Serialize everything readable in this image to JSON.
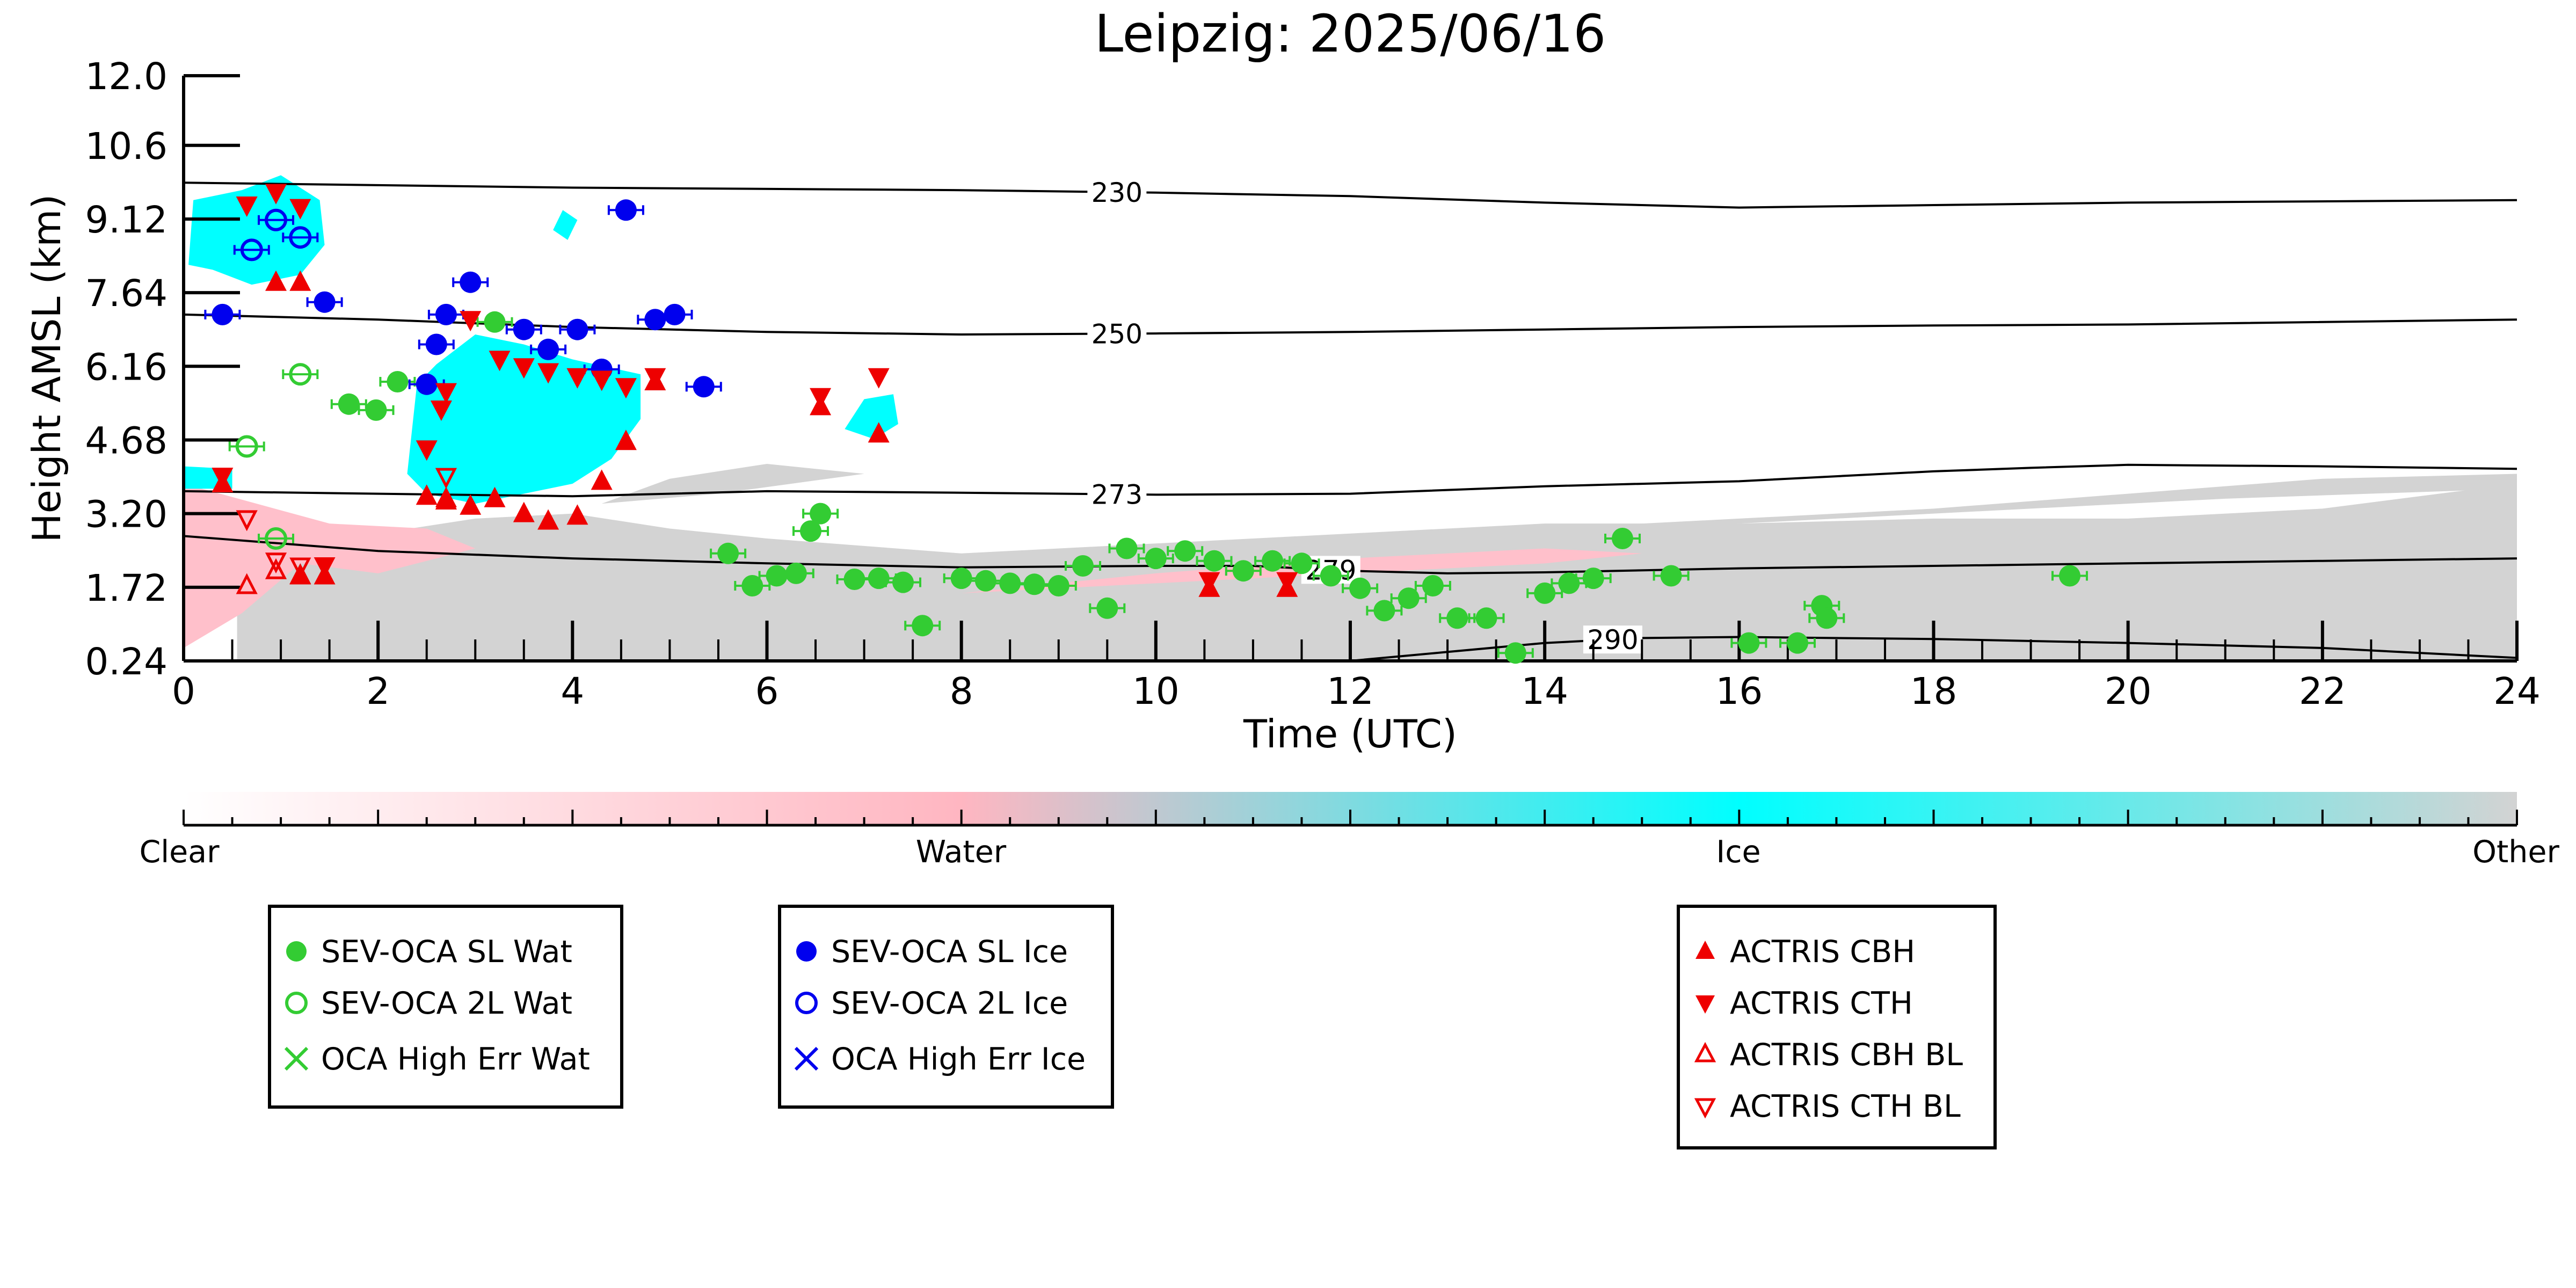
{
  "chart_data": {
    "type": "scatter",
    "title": "Leipzig: 2025/06/16",
    "xlabel": "Time (UTC)",
    "ylabel": "Height AMSL (km)",
    "xlim": [
      0,
      24
    ],
    "ylim": [
      0.24,
      12.0
    ],
    "x_ticks": [
      "0",
      "2",
      "4",
      "6",
      "8",
      "10",
      "12",
      "14",
      "16",
      "18",
      "20",
      "22",
      "24"
    ],
    "y_ticks": [
      "0.24",
      "1.72",
      "3.20",
      "4.68",
      "6.16",
      "7.64",
      "9.12",
      "10.6",
      "12.0"
    ],
    "background": "Cloudnet target classification (pink = water, cyan = ice, grey = other)",
    "colorbar": {
      "labels": [
        "Clear",
        "Water",
        "Ice",
        "Other"
      ],
      "colors": [
        "#ffffff",
        "#ffb6c1",
        "#00ffff",
        "#d3d3d3"
      ]
    },
    "contours": [
      {
        "label": "230",
        "label_x": 9.6,
        "points": [
          [
            0,
            9.85
          ],
          [
            4,
            9.75
          ],
          [
            8,
            9.7
          ],
          [
            10,
            9.65
          ],
          [
            12,
            9.58
          ],
          [
            14,
            9.45
          ],
          [
            16,
            9.35
          ],
          [
            18,
            9.4
          ],
          [
            20,
            9.45
          ],
          [
            24,
            9.5
          ]
        ]
      },
      {
        "label": "250",
        "label_x": 9.6,
        "points": [
          [
            0,
            7.2
          ],
          [
            2,
            7.1
          ],
          [
            4,
            6.95
          ],
          [
            6,
            6.85
          ],
          [
            8,
            6.8
          ],
          [
            10,
            6.82
          ],
          [
            12,
            6.85
          ],
          [
            14,
            6.9
          ],
          [
            16,
            6.95
          ],
          [
            18,
            6.98
          ],
          [
            20,
            7.0
          ],
          [
            24,
            7.1
          ]
        ]
      },
      {
        "label": "273",
        "label_x": 9.6,
        "points": [
          [
            0,
            3.65
          ],
          [
            2,
            3.6
          ],
          [
            4,
            3.55
          ],
          [
            6,
            3.65
          ],
          [
            8,
            3.62
          ],
          [
            10,
            3.58
          ],
          [
            12,
            3.6
          ],
          [
            14,
            3.75
          ],
          [
            16,
            3.85
          ],
          [
            17,
            3.95
          ],
          [
            18,
            4.05
          ],
          [
            19,
            4.12
          ],
          [
            20,
            4.18
          ],
          [
            22,
            4.15
          ],
          [
            24,
            4.1
          ]
        ]
      },
      {
        "label": "279",
        "label_x": 11.8,
        "points": [
          [
            0,
            2.75
          ],
          [
            1,
            2.6
          ],
          [
            2,
            2.45
          ],
          [
            4,
            2.3
          ],
          [
            6,
            2.2
          ],
          [
            8,
            2.12
          ],
          [
            10,
            2.15
          ],
          [
            11,
            2.15
          ],
          [
            12,
            2.05
          ],
          [
            13,
            2.0
          ],
          [
            14,
            2.02
          ],
          [
            16,
            2.1
          ],
          [
            18,
            2.15
          ],
          [
            20,
            2.2
          ],
          [
            22,
            2.25
          ],
          [
            24,
            2.3
          ]
        ]
      },
      {
        "label": "290",
        "label_x": 14.7,
        "points": [
          [
            12,
            0.24
          ],
          [
            13,
            0.42
          ],
          [
            14,
            0.6
          ],
          [
            15,
            0.7
          ],
          [
            16,
            0.72
          ],
          [
            18,
            0.68
          ],
          [
            20,
            0.6
          ],
          [
            22,
            0.5
          ],
          [
            24,
            0.3
          ]
        ]
      }
    ],
    "series": [
      {
        "name": "SEV-OCA SL Wat",
        "color": "#33cc33",
        "marker": "filled-circle",
        "points": [
          [
            1.7,
            5.4
          ],
          [
            1.98,
            5.28
          ],
          [
            2.2,
            5.85
          ],
          [
            3.2,
            7.05
          ],
          [
            5.6,
            2.4
          ],
          [
            5.85,
            1.75
          ],
          [
            6.1,
            1.95
          ],
          [
            6.3,
            2.0
          ],
          [
            6.45,
            2.85
          ],
          [
            6.55,
            3.2
          ],
          [
            6.9,
            1.88
          ],
          [
            7.15,
            1.9
          ],
          [
            7.4,
            1.82
          ],
          [
            7.6,
            0.95
          ],
          [
            8.0,
            1.9
          ],
          [
            8.25,
            1.85
          ],
          [
            8.5,
            1.8
          ],
          [
            8.75,
            1.78
          ],
          [
            9.0,
            1.75
          ],
          [
            9.25,
            2.15
          ],
          [
            9.5,
            1.3
          ],
          [
            9.7,
            2.5
          ],
          [
            10.0,
            2.3
          ],
          [
            10.3,
            2.45
          ],
          [
            10.6,
            2.25
          ],
          [
            10.9,
            2.05
          ],
          [
            11.2,
            2.25
          ],
          [
            11.5,
            2.2
          ],
          [
            11.8,
            1.95
          ],
          [
            12.1,
            1.7
          ],
          [
            12.35,
            1.25
          ],
          [
            12.6,
            1.5
          ],
          [
            12.85,
            1.75
          ],
          [
            13.1,
            1.1
          ],
          [
            13.4,
            1.1
          ],
          [
            13.7,
            0.4
          ],
          [
            14.0,
            1.6
          ],
          [
            14.25,
            1.8
          ],
          [
            14.5,
            1.9
          ],
          [
            14.8,
            2.7
          ],
          [
            15.3,
            1.95
          ],
          [
            16.1,
            0.6
          ],
          [
            16.6,
            0.6
          ],
          [
            16.85,
            1.35
          ],
          [
            16.9,
            1.1
          ],
          [
            19.4,
            1.95
          ]
        ]
      },
      {
        "name": "SEV-OCA 2L Wat",
        "color": "#33cc33",
        "marker": "open-circle",
        "points": [
          [
            0.65,
            4.55
          ],
          [
            0.95,
            2.7
          ],
          [
            1.2,
            6.0
          ]
        ]
      },
      {
        "name": "OCA High Err Wat",
        "color": "#33cc33",
        "marker": "x",
        "points": []
      },
      {
        "name": "SEV-OCA SL Ice",
        "color": "#0000ee",
        "marker": "filled-circle",
        "points": [
          [
            0.4,
            7.2
          ],
          [
            1.45,
            7.45
          ],
          [
            2.5,
            5.8
          ],
          [
            2.6,
            6.6
          ],
          [
            2.7,
            7.2
          ],
          [
            2.95,
            7.85
          ],
          [
            3.5,
            6.9
          ],
          [
            3.75,
            6.5
          ],
          [
            4.05,
            6.9
          ],
          [
            4.3,
            6.1
          ],
          [
            4.55,
            9.3
          ],
          [
            4.85,
            7.1
          ],
          [
            5.05,
            7.2
          ],
          [
            5.35,
            5.75
          ]
        ]
      },
      {
        "name": "SEV-OCA 2L Ice",
        "color": "#0000ee",
        "marker": "open-circle",
        "points": [
          [
            0.7,
            8.5
          ],
          [
            0.95,
            9.1
          ],
          [
            1.2,
            8.75
          ]
        ]
      },
      {
        "name": "OCA High Err Ice",
        "color": "#0000ee",
        "marker": "x",
        "points": []
      },
      {
        "name": "ACTRIS CBH",
        "color": "#ee0000",
        "marker": "filled-triangle-up",
        "points": [
          [
            0.4,
            3.8
          ],
          [
            0.95,
            7.85
          ],
          [
            1.2,
            7.85
          ],
          [
            1.2,
            1.95
          ],
          [
            1.45,
            1.95
          ],
          [
            2.5,
            3.55
          ],
          [
            2.7,
            3.5
          ],
          [
            2.95,
            3.35
          ],
          [
            3.2,
            3.5
          ],
          [
            3.5,
            3.2
          ],
          [
            3.75,
            3.05
          ],
          [
            4.05,
            3.15
          ],
          [
            4.3,
            3.85
          ],
          [
            4.55,
            4.65
          ],
          [
            4.85,
            5.85
          ],
          [
            6.55,
            5.35
          ],
          [
            7.15,
            4.8
          ],
          [
            10.55,
            1.7
          ],
          [
            11.35,
            1.7
          ]
        ]
      },
      {
        "name": "ACTRIS CTH",
        "color": "#ee0000",
        "marker": "filled-triangle-down",
        "points": [
          [
            0.4,
            3.95
          ],
          [
            0.65,
            9.4
          ],
          [
            0.95,
            9.65
          ],
          [
            1.2,
            9.35
          ],
          [
            1.45,
            2.15
          ],
          [
            2.5,
            4.5
          ],
          [
            2.65,
            5.3
          ],
          [
            2.7,
            5.65
          ],
          [
            2.95,
            7.1
          ],
          [
            3.25,
            6.3
          ],
          [
            3.5,
            6.15
          ],
          [
            3.75,
            6.05
          ],
          [
            4.05,
            5.95
          ],
          [
            4.3,
            5.9
          ],
          [
            4.55,
            5.75
          ],
          [
            4.85,
            5.95
          ],
          [
            6.55,
            5.55
          ],
          [
            7.15,
            5.95
          ],
          [
            10.55,
            1.85
          ],
          [
            11.35,
            1.85
          ]
        ]
      },
      {
        "name": "ACTRIS CBH BL",
        "color": "#ee0000",
        "marker": "open-triangle-up",
        "points": [
          [
            0.65,
            1.75
          ],
          [
            0.95,
            2.05
          ],
          [
            1.2,
            1.95
          ],
          [
            2.7,
            3.45
          ]
        ]
      },
      {
        "name": "ACTRIS CTH BL",
        "color": "#ee0000",
        "marker": "open-triangle-down",
        "points": [
          [
            0.65,
            3.1
          ],
          [
            0.95,
            2.25
          ],
          [
            1.2,
            2.15
          ],
          [
            2.7,
            3.95
          ]
        ]
      }
    ]
  },
  "legends": [
    {
      "items": [
        {
          "label": "SEV-OCA SL Wat",
          "color": "#33cc33",
          "marker": "filled-circle"
        },
        {
          "label": "SEV-OCA 2L Wat",
          "color": "#33cc33",
          "marker": "open-circle"
        },
        {
          "label": "OCA High Err Wat",
          "color": "#33cc33",
          "marker": "x"
        }
      ]
    },
    {
      "items": [
        {
          "label": "SEV-OCA SL Ice",
          "color": "#0000ee",
          "marker": "filled-circle"
        },
        {
          "label": "SEV-OCA 2L Ice",
          "color": "#0000ee",
          "marker": "open-circle"
        },
        {
          "label": "OCA High Err Ice",
          "color": "#0000ee",
          "marker": "x"
        }
      ]
    },
    {
      "items": [
        {
          "label": "ACTRIS CBH",
          "color": "#ee0000",
          "marker": "filled-triangle-up"
        },
        {
          "label": "ACTRIS CTH",
          "color": "#ee0000",
          "marker": "filled-triangle-down"
        },
        {
          "label": "ACTRIS CBH BL",
          "color": "#ee0000",
          "marker": "open-triangle-up"
        },
        {
          "label": "ACTRIS CTH BL",
          "color": "#ee0000",
          "marker": "open-triangle-down"
        }
      ]
    }
  ]
}
